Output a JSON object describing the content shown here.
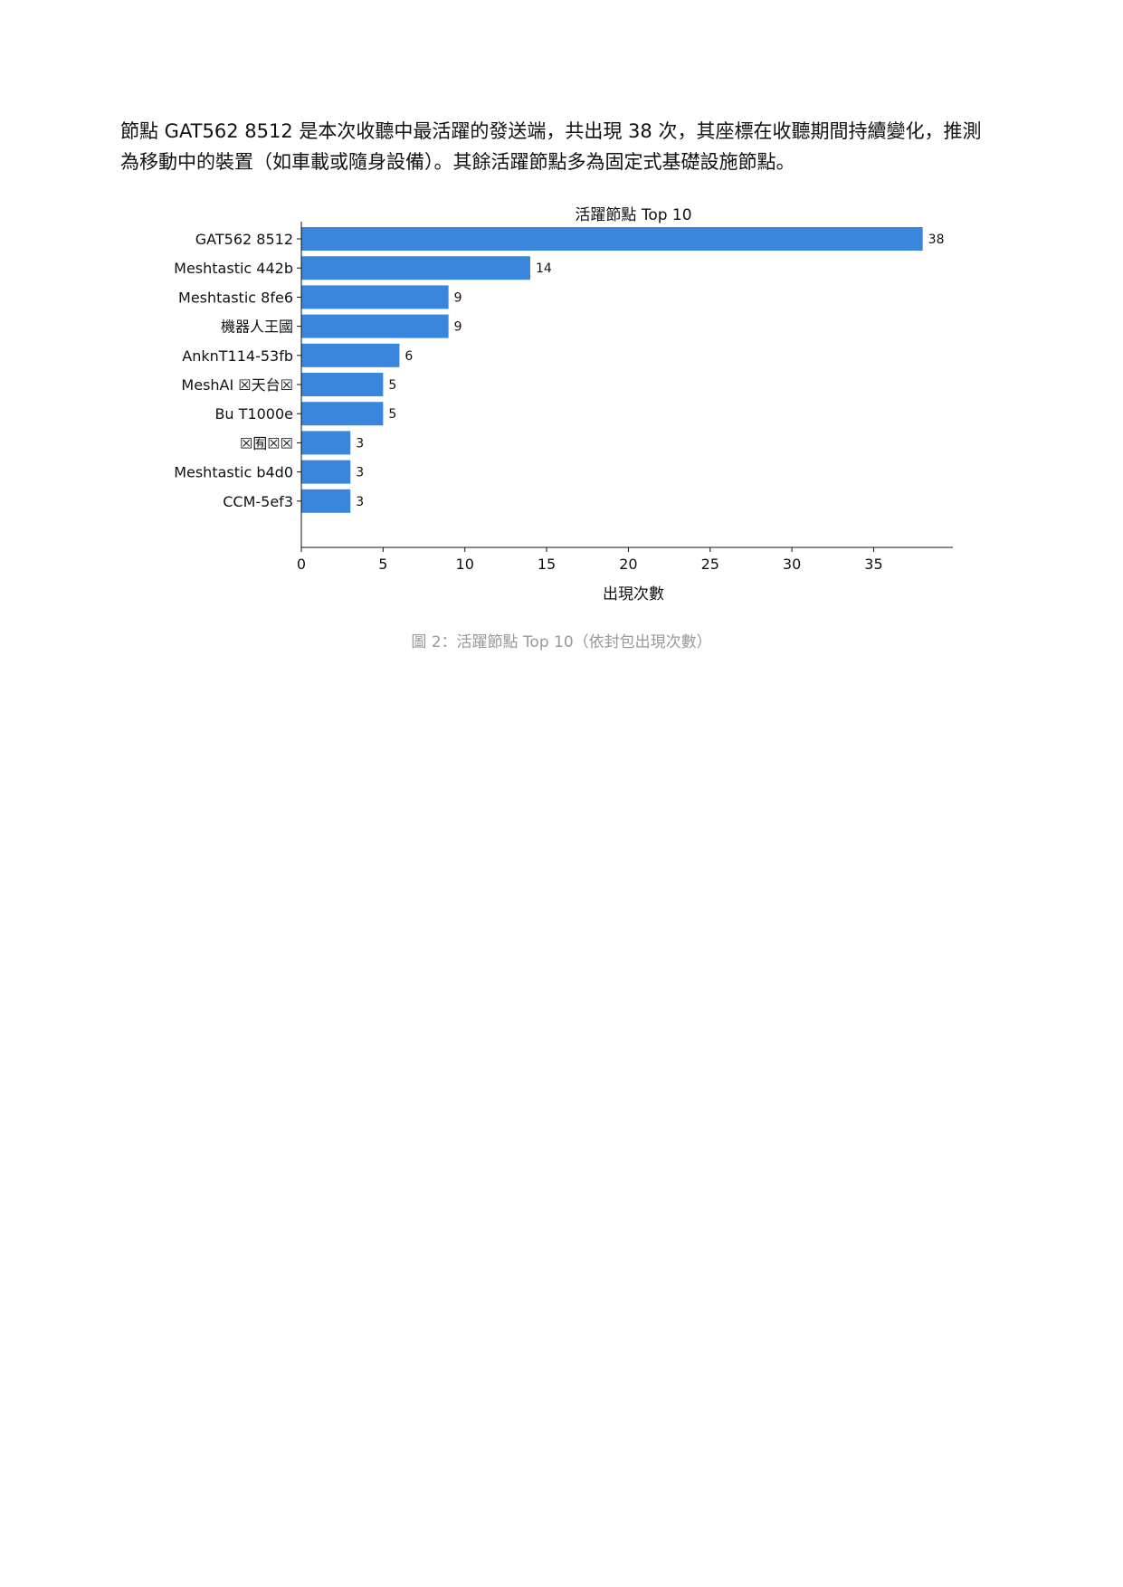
{
  "paragraph": {
    "line1": "節點 GAT562 8512 是本次收聽中最活躍的發送端，共出現 38 次，其座標在收聽期間持續變化，推測",
    "line2": "為移動中的裝置（如車載或隨身設備）。其餘活躍節點多為固定式基礎設施節點。"
  },
  "chart_data": {
    "type": "bar",
    "orientation": "horizontal",
    "title": "活躍節點 Top 10",
    "xlabel": "出現次數",
    "ylabel": "",
    "categories": [
      "GAT562 8512",
      "Meshtastic 442b",
      "Meshtastic 8fe6",
      "機器人王國",
      "AnknT114-53fb",
      "MeshAI ☒天台☒",
      "Bu T1000e",
      "☒囿☒☒",
      "Meshtastic b4d0",
      "CCM-5ef3"
    ],
    "values": [
      38,
      14,
      9,
      9,
      6,
      5,
      5,
      3,
      3,
      3
    ],
    "data_labels": [
      "38",
      "14",
      "9",
      "9",
      "6",
      "5",
      "5",
      "3",
      "3",
      "3"
    ],
    "xlim": [
      0,
      40
    ],
    "xticks": [
      0,
      5,
      10,
      15,
      20,
      25,
      30,
      35
    ],
    "grid": false,
    "bar_color": "#3a86dc"
  },
  "caption": "圖 2：活躍節點 Top 10（依封包出現次數）"
}
